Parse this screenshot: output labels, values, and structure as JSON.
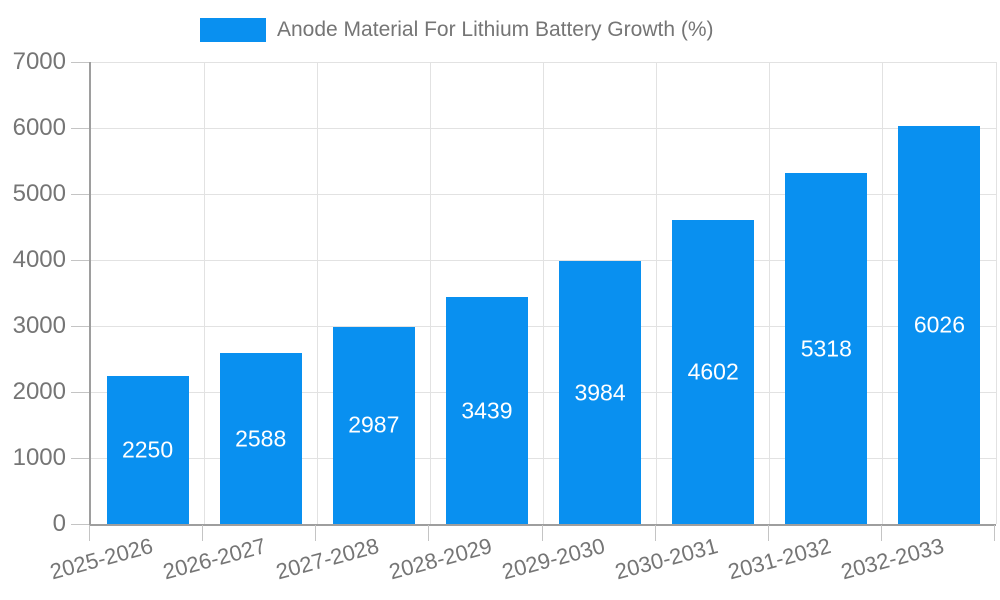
{
  "legend": {
    "label": "Anode Material For Lithium Battery Growth (%)"
  },
  "chart_data": {
    "type": "bar",
    "title": "Anode Material For Lithium Battery Growth (%)",
    "categories": [
      "2025-2026",
      "2026-2027",
      "2027-2028",
      "2028-2029",
      "2029-2030",
      "2030-2031",
      "2031-2032",
      "2032-2033"
    ],
    "values": [
      2250,
      2588,
      2987,
      3439,
      3984,
      4602,
      5318,
      6026
    ],
    "xlabel": "",
    "ylabel": "",
    "ylim": [
      0,
      7000
    ],
    "y_ticks": [
      0,
      1000,
      2000,
      3000,
      4000,
      5000,
      6000,
      7000
    ],
    "grid": true,
    "legend_position": "top",
    "colors": {
      "bar": "#0990f0",
      "grid": "#e2e2e2",
      "axis": "#9e9e9e",
      "tick": "#c4c4c4",
      "axis_text": "#757575",
      "value_label": "#ffffff"
    }
  }
}
